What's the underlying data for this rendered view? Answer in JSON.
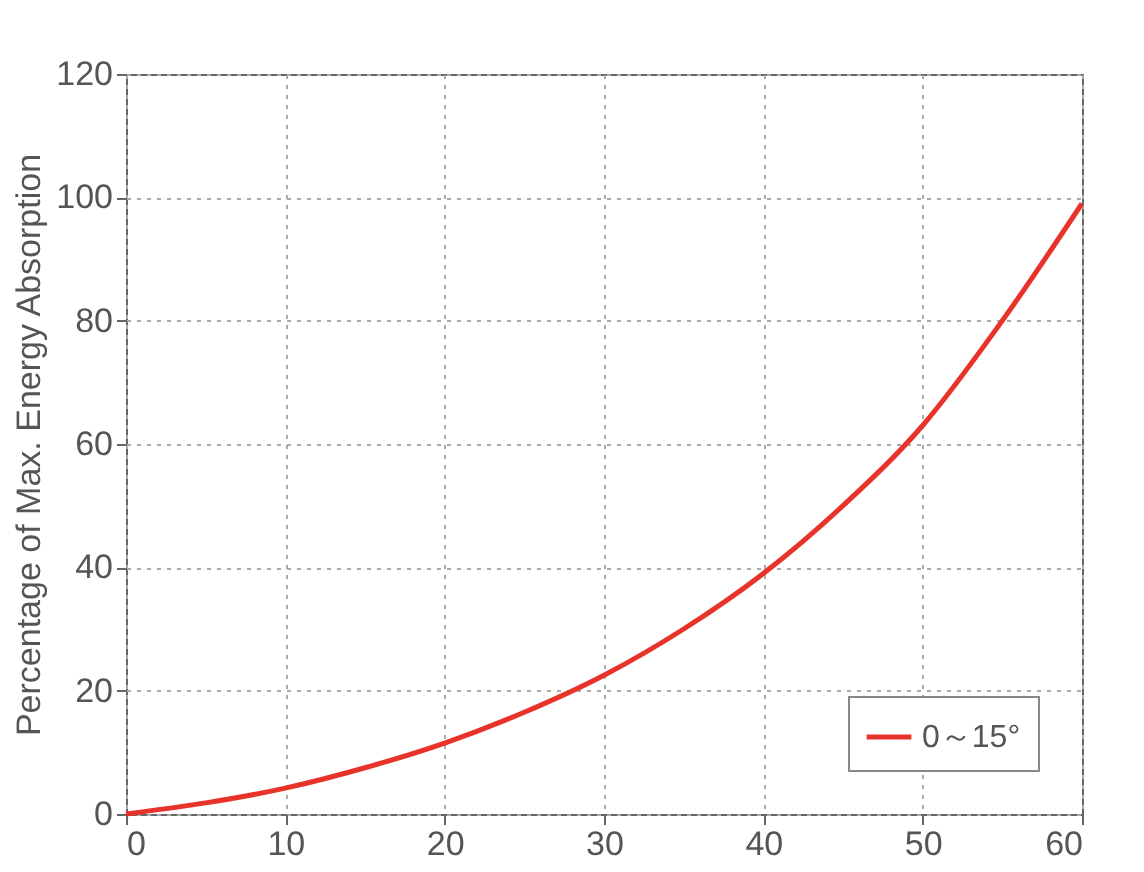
{
  "chart_data": {
    "type": "line",
    "ylabel": "Percentage of Max. Energy Absorption",
    "x": [
      0,
      5,
      10,
      15,
      20,
      25,
      30,
      35,
      40,
      45,
      50,
      55,
      60
    ],
    "series": [
      {
        "name": "0～15°",
        "color": "#e8332a",
        "values": [
          0,
          1.8,
          4.2,
          7.5,
          11.5,
          16.5,
          22.5,
          30,
          39,
          50,
          63,
          80,
          99
        ]
      }
    ],
    "xlim": [
      0,
      60
    ],
    "xticks": [
      0,
      10,
      20,
      30,
      40,
      50,
      60
    ],
    "ylim": [
      0,
      120
    ],
    "yticks": [
      0,
      20,
      40,
      60,
      80,
      100,
      120
    ],
    "grid": true,
    "legend": "bottom right",
    "marker": "none",
    "line_style": "solid"
  }
}
